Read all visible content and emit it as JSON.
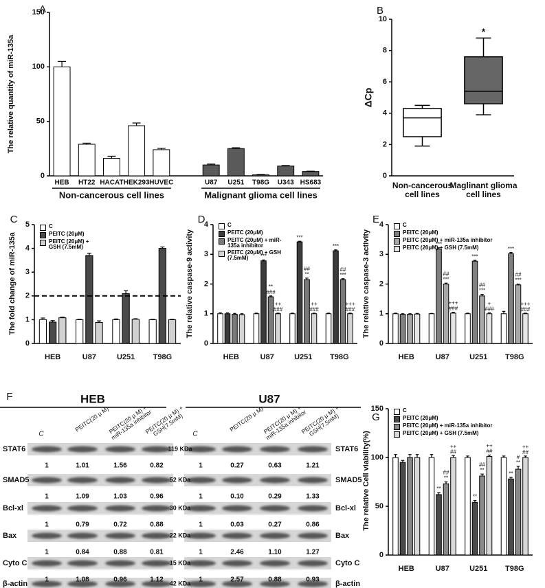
{
  "chart_data": [
    {
      "type": "bar",
      "panel": "A",
      "ylabel": "The relative quantity of miR-135a",
      "ylim": [
        0,
        150
      ],
      "yticks": [
        0,
        50,
        100,
        150
      ],
      "series": [
        {
          "name": "Non-cancerous cell lines",
          "color": "#ffffff",
          "categories": [
            "HEB",
            "HT22",
            "HACAT",
            "HEK293",
            "HUVEC"
          ],
          "values": [
            100,
            29,
            16,
            46,
            24
          ],
          "errors": [
            5,
            1,
            2,
            2.5,
            1.2
          ]
        },
        {
          "name": "Malignant glioma cell lines",
          "color": "#5a5a5a",
          "categories": [
            "U87",
            "U251",
            "T98G",
            "U343",
            "HS683"
          ],
          "values": [
            10,
            25,
            1,
            9,
            4
          ],
          "errors": [
            0.8,
            0.8,
            0.3,
            0.5,
            0.3
          ]
        }
      ]
    },
    {
      "type": "box",
      "panel": "B",
      "ylabel": "ΔCp",
      "ylim": [
        0,
        10
      ],
      "yticks": [
        0,
        2,
        4,
        6,
        8,
        10
      ],
      "categories": [
        "Non-cancerous cell lines",
        "Maglinant glioma cell lines"
      ],
      "colors": [
        "#ffffff",
        "#666666"
      ],
      "boxes": [
        {
          "min": 1.9,
          "q1": 2.5,
          "median": 3.7,
          "q3": 4.3,
          "max": 4.5
        },
        {
          "min": 3.9,
          "q1": 4.6,
          "median": 5.4,
          "q3": 7.6,
          "max": 8.8
        }
      ],
      "annotations": [
        null,
        "*"
      ]
    },
    {
      "type": "bar",
      "panel": "C",
      "ylabel": "The fold change of miR-135a",
      "ylim": [
        0,
        5
      ],
      "yticks": [
        0,
        1,
        2,
        3,
        4,
        5
      ],
      "categories": [
        "HEB",
        "U87",
        "U251",
        "T98G"
      ],
      "reference_line": {
        "value": 2,
        "style": "dashed"
      },
      "series": [
        {
          "name": "C",
          "color": "#ffffff",
          "values": [
            1.0,
            1.0,
            1.0,
            1.0
          ],
          "errors": [
            0.07,
            0.02,
            0.03,
            0.02
          ]
        },
        {
          "name": "PEITC (20μM)",
          "color": "#4a4a4a",
          "values": [
            0.9,
            3.7,
            2.1,
            4.0
          ],
          "errors": [
            0.06,
            0.1,
            0.12,
            0.06
          ]
        },
        {
          "name": "PEITC (20μM) + GSH (7.5mM)",
          "color": "#d0d0d0",
          "values": [
            1.08,
            0.88,
            1.02,
            1.0
          ],
          "errors": [
            0.03,
            0.07,
            0.02,
            0.02
          ]
        }
      ]
    },
    {
      "type": "bar",
      "panel": "D",
      "ylabel": "The relative caspase-9 activity",
      "ylim": [
        0,
        4
      ],
      "yticks": [
        0,
        1,
        2,
        3,
        4
      ],
      "categories": [
        "HEB",
        "U87",
        "U251",
        "T98G"
      ],
      "series": [
        {
          "name": "C",
          "color": "#ffffff",
          "values": [
            1.0,
            1.0,
            1.0,
            1.0
          ],
          "errors": [
            0.03,
            0.02,
            0.02,
            0.02
          ]
        },
        {
          "name": "PEITC (20μM)",
          "color": "#3c3c3c",
          "values": [
            1.0,
            2.78,
            3.42,
            3.12
          ],
          "errors": [
            0.03,
            0.03,
            0.02,
            0.03
          ],
          "annotations": [
            null,
            [
              "***"
            ],
            [
              "***"
            ],
            [
              "***"
            ]
          ]
        },
        {
          "name": "PEITC (20μM) + miR-135a inhibitor",
          "color": "#7a7a7a",
          "values": [
            0.98,
            1.57,
            2.15,
            2.15
          ],
          "errors": [
            0.03,
            0.03,
            0.05,
            0.03
          ],
          "annotations": [
            null,
            [
              "**",
              "###"
            ],
            [
              "##",
              "**"
            ],
            [
              "##",
              "***"
            ]
          ]
        },
        {
          "name": "PEITC (20μM) + GSH (7.5mM)",
          "color": "#d4d4d4",
          "values": [
            0.97,
            1.0,
            1.0,
            1.0
          ],
          "errors": [
            0.03,
            0.02,
            0.02,
            0.02
          ],
          "annotations": [
            null,
            [
              "++",
              "###"
            ],
            [
              "++",
              "###"
            ],
            [
              "+++",
              "###"
            ]
          ]
        }
      ]
    },
    {
      "type": "bar",
      "panel": "E",
      "ylabel": "The relative caspase-3 activity",
      "ylim": [
        0,
        4
      ],
      "yticks": [
        0,
        1,
        2,
        3,
        4
      ],
      "categories": [
        "HEB",
        "U87",
        "U251",
        "T98G"
      ],
      "series": [
        {
          "name": "C",
          "color": "#ffffff",
          "values": [
            1.0,
            1.0,
            1.0,
            1.0
          ],
          "errors": [
            0.02,
            0.01,
            0.02,
            0.08
          ]
        },
        {
          "name": "PEITC (20μM)",
          "color": "#808080",
          "values": [
            0.98,
            3.18,
            2.77,
            3.02
          ],
          "errors": [
            0.02,
            0.04,
            0.03,
            0.04
          ],
          "annotations": [
            null,
            [
              "***"
            ],
            [
              "***"
            ],
            [
              "***"
            ]
          ]
        },
        {
          "name": "PEITC (20μM) + miR-135a inhibitor",
          "color": "#a8a8a8",
          "values": [
            0.98,
            2.0,
            1.6,
            1.97
          ],
          "errors": [
            0.02,
            0.03,
            0.05,
            0.03
          ],
          "annotations": [
            null,
            [
              "##",
              "***"
            ],
            [
              "##",
              "***"
            ],
            [
              "##",
              "***"
            ]
          ]
        },
        {
          "name": "PEITC (20μM) + GSH (7.5mM)",
          "color": "#e6e6e6",
          "values": [
            0.99,
            1.02,
            1.0,
            1.0
          ],
          "errors": [
            0.02,
            0.03,
            0.03,
            0.02
          ],
          "annotations": [
            null,
            [
              "+++",
              "###"
            ],
            [
              "+",
              "###"
            ],
            [
              "+++",
              "###"
            ]
          ]
        }
      ]
    },
    {
      "type": "bar",
      "panel": "G",
      "ylabel": "The relative Cell viability(%)",
      "ylim": [
        0,
        150
      ],
      "yticks": [
        0,
        50,
        100,
        150
      ],
      "categories": [
        "HEB",
        "U87",
        "U251",
        "T98G"
      ],
      "series": [
        {
          "name": "C",
          "color": "#ffffff",
          "values": [
            100,
            100,
            100,
            100
          ],
          "errors": [
            3,
            3,
            1.5,
            1.5
          ]
        },
        {
          "name": "PEITC (20μM)",
          "color": "#4a4a4a",
          "values": [
            95,
            62,
            54,
            78
          ],
          "errors": [
            2,
            2,
            2,
            1.5
          ],
          "annotations": [
            null,
            [
              "**"
            ],
            [
              "**"
            ],
            [
              "**"
            ]
          ]
        },
        {
          "name": "PEITC (20μM) + miR-135a inhibitor",
          "color": "#8a8a8a",
          "values": [
            100,
            73,
            81,
            88
          ],
          "errors": [
            3,
            2,
            2,
            3
          ],
          "annotations": [
            null,
            [
              "##",
              "**"
            ],
            [
              "##",
              "**"
            ],
            [
              "#",
              "**"
            ]
          ]
        },
        {
          "name": "PEITC (20μM) + GSH (7.5mM)",
          "color": "#d8d8d8",
          "values": [
            100,
            100,
            101,
            100
          ],
          "errors": [
            3,
            2,
            1.5,
            1.5
          ],
          "annotations": [
            null,
            [
              "++",
              "##"
            ],
            [
              "++",
              "##"
            ],
            [
              "++",
              "##"
            ]
          ]
        }
      ]
    }
  ],
  "blot": {
    "panel": "F",
    "loading_control": "β-actin",
    "sizes": [
      "119 KDa",
      "52 KDa",
      "30 KDa",
      "22 KDa",
      "15 KDa",
      "42 KDa"
    ],
    "panels": [
      {
        "title": "HEB",
        "columns": [
          "C",
          "PEITC(20 μ M)",
          "PEITC(20 μ M) + miR-135a inhibitor",
          "PEITC(20 μ M) + GSH(7.5mM)"
        ],
        "rows": [
          {
            "protein": "STAT6",
            "values": [
              "1",
              "1.01",
              "1.56",
              "0.82"
            ]
          },
          {
            "protein": "SMAD5",
            "values": [
              "1",
              "1.09",
              "1.03",
              "0.96"
            ]
          },
          {
            "protein": "Bcl-xl",
            "values": [
              "1",
              "0.79",
              "0.72",
              "0.88"
            ]
          },
          {
            "protein": "Bax",
            "values": [
              "1",
              "0.84",
              "0.88",
              "0.81"
            ]
          },
          {
            "protein": "Cyto C",
            "values": [
              "1",
              "1.08",
              "0.96",
              "1.12"
            ]
          }
        ]
      },
      {
        "title": "U87",
        "columns": [
          "C",
          "PEITC(20 μ M)",
          "PEITC(20 μ M) + miR-135a inhibitor",
          "PEITC(20 μ M) + GSH(7.5mM)"
        ],
        "rows": [
          {
            "protein": "STAT6",
            "values": [
              "1",
              "0.27",
              "0.63",
              "1.21"
            ]
          },
          {
            "protein": "SMAD5",
            "values": [
              "1",
              "0.10",
              "0.29",
              "1.33"
            ]
          },
          {
            "protein": "Bcl-xl",
            "values": [
              "1",
              "0.03",
              "0.27",
              "0.86"
            ]
          },
          {
            "protein": "Bax",
            "values": [
              "1",
              "2.46",
              "1.10",
              "1.27"
            ]
          },
          {
            "protein": "Cyto C",
            "values": [
              "1",
              "2.57",
              "0.88",
              "0.93"
            ]
          }
        ]
      }
    ]
  }
}
